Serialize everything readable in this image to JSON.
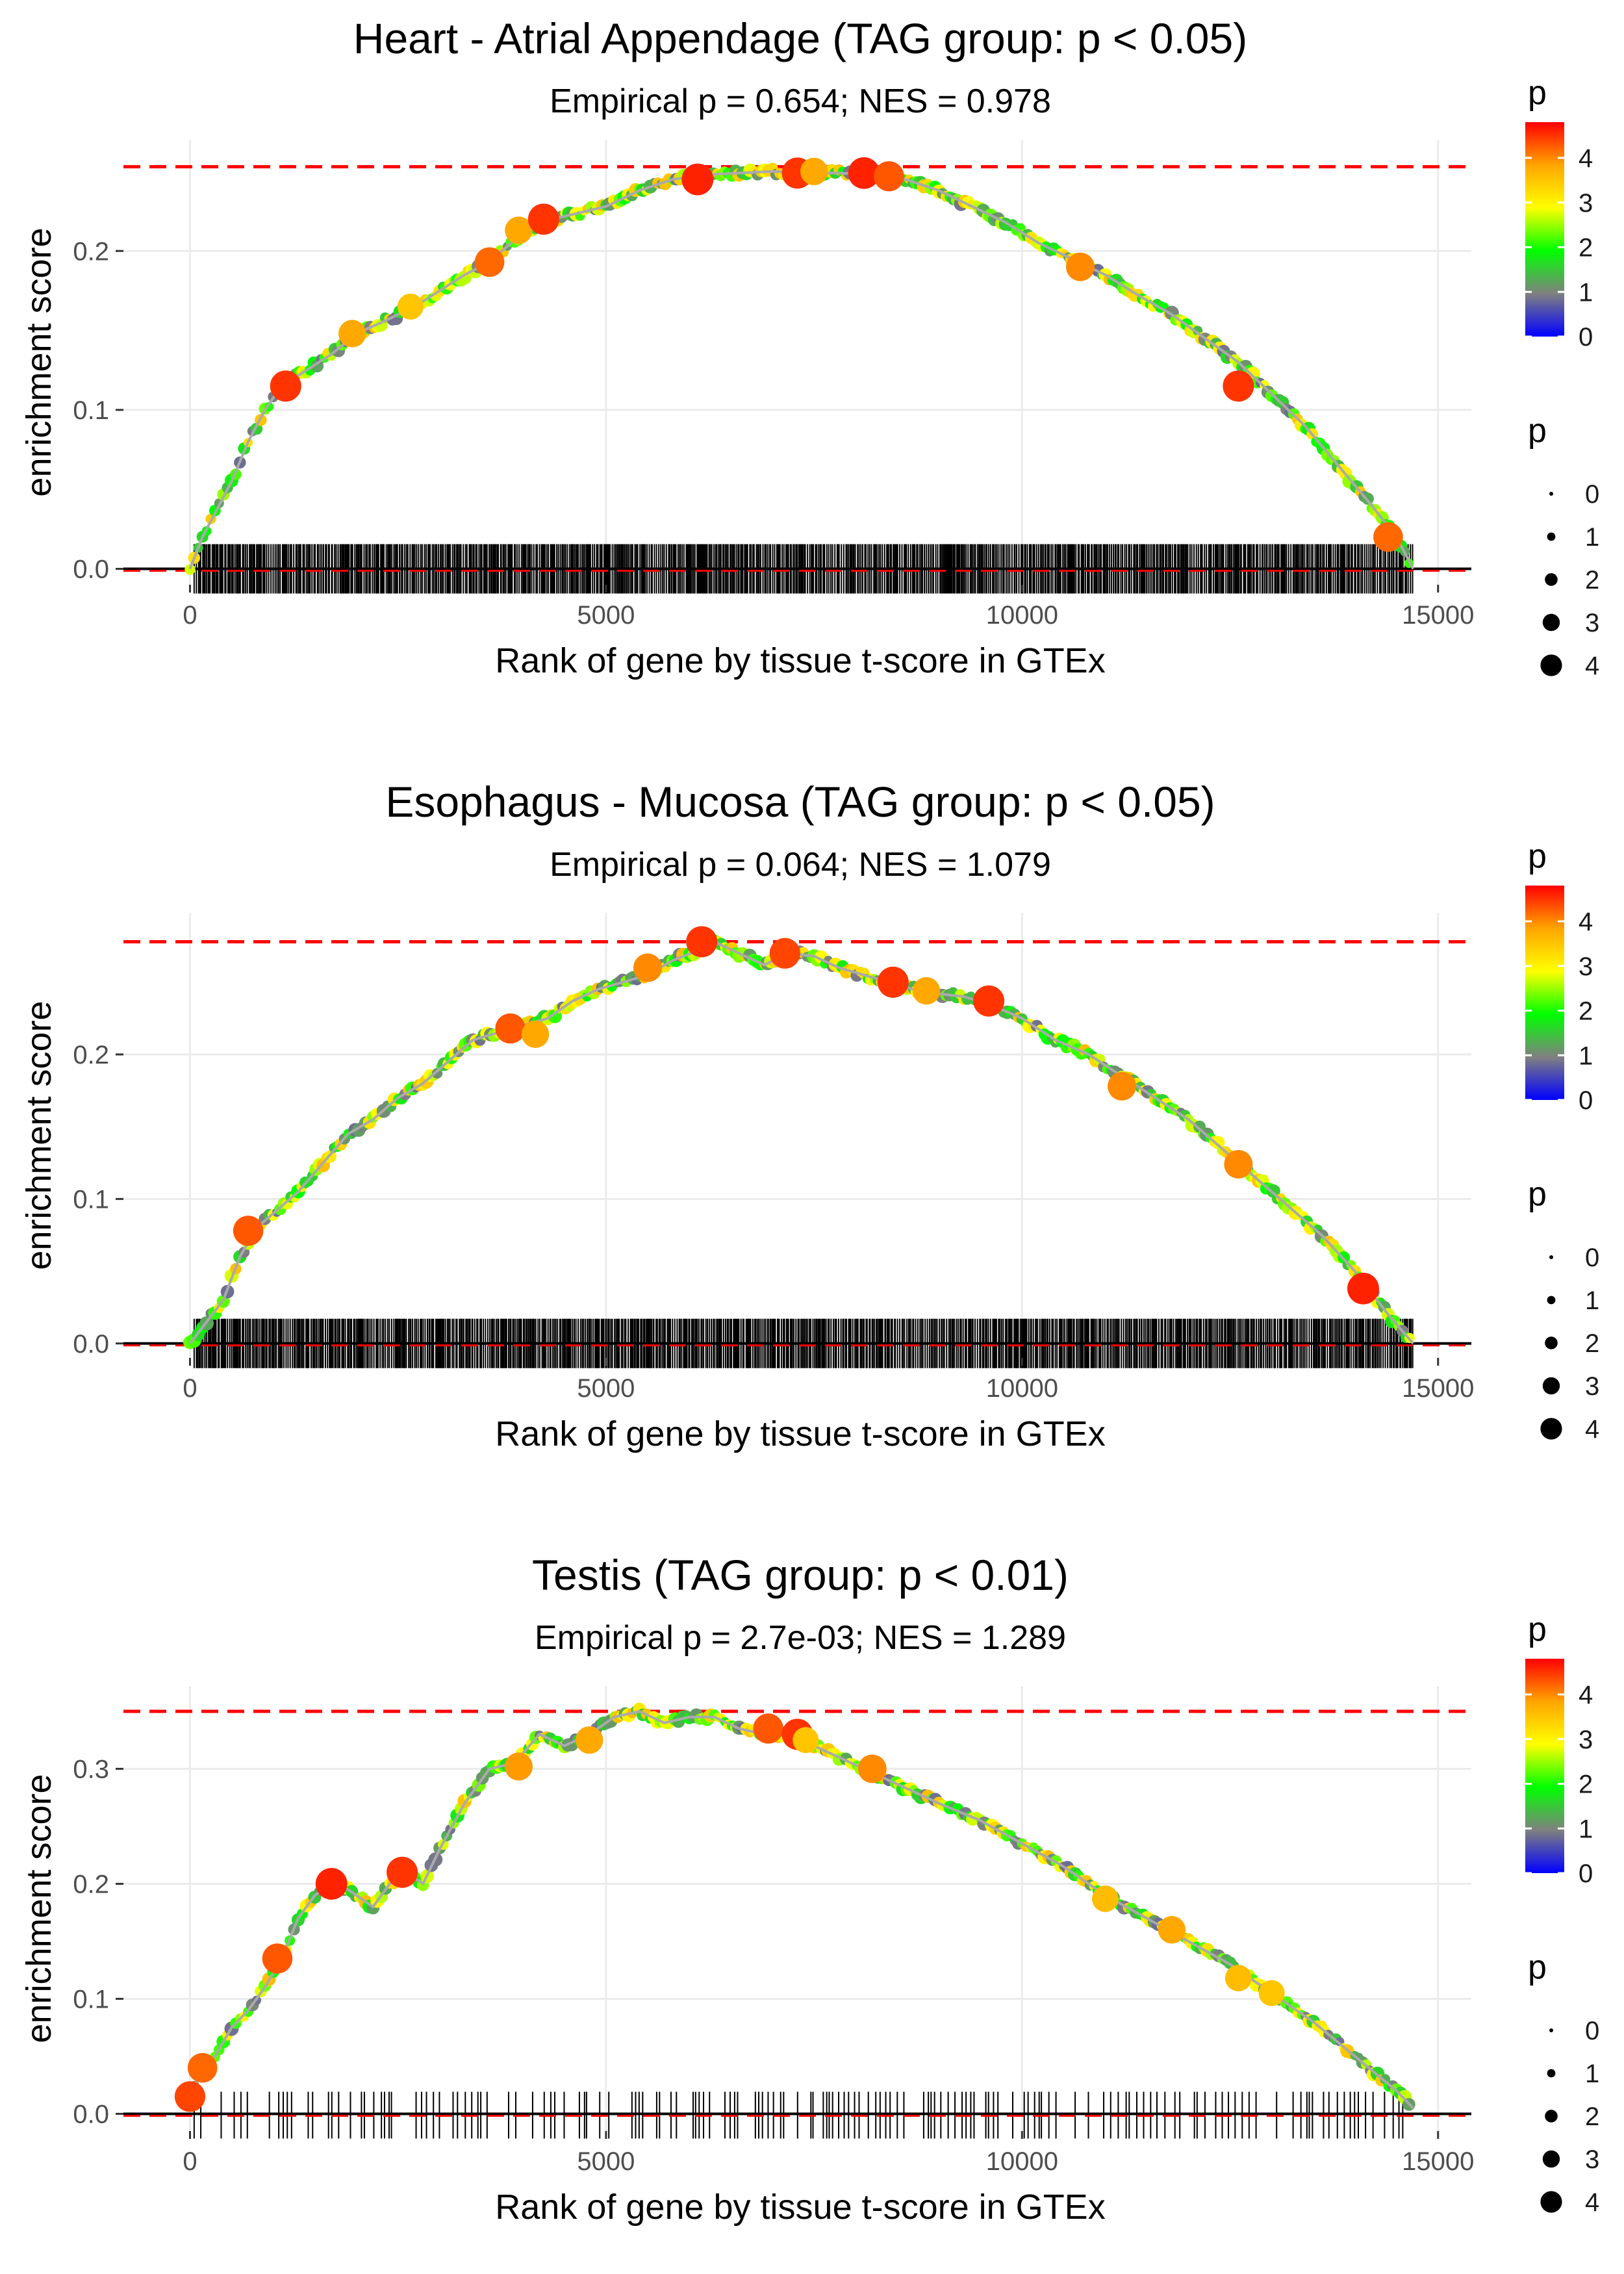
{
  "figure": {
    "colors": {
      "gradient": [
        "#0000ff",
        "#808080",
        "#00ff00",
        "#ffff00",
        "#ffa500",
        "#ff0000"
      ],
      "max_line": "#ff0000",
      "curve": "#aaaaaa",
      "rug": "#000000",
      "grid": "#ebebeb"
    }
  },
  "chart_data": [
    {
      "type": "line",
      "title": "Heart - Atrial Appendage (TAG group: p < 0.05)",
      "subtitle": "Empirical p = 0.654; NES = 0.978",
      "xlabel": "Rank of gene by tissue t-score in GTEx",
      "ylabel": "enrichment score",
      "xlim": [
        -800,
        15400
      ],
      "ylim": [
        -0.01,
        0.27
      ],
      "x_ticks": [
        0,
        5000,
        10000,
        15000
      ],
      "x_tick_labels": [
        "0",
        "5000",
        "10000",
        "15000"
      ],
      "y_ticks": [
        0.0,
        0.1,
        0.2
      ],
      "y_tick_labels": [
        "0.0",
        "0.1",
        "0.2"
      ],
      "max_es": 0.253,
      "n_genes": 14700,
      "rug_density": "dense",
      "es_curve": {
        "x": [
          0,
          150,
          300,
          500,
          700,
          900,
          1100,
          1400,
          1700,
          2000,
          2300,
          2700,
          3000,
          3300,
          3600,
          3900,
          4200,
          4600,
          5000,
          5400,
          5800,
          6200,
          6600,
          7000,
          7400,
          7800,
          8200,
          8600,
          9000,
          9400,
          9800,
          10200,
          10600,
          11000,
          11400,
          11800,
          12200,
          12600,
          13000,
          13400,
          13800,
          14200,
          14500,
          14700
        ],
        "y": [
          0.0,
          0.02,
          0.035,
          0.055,
          0.08,
          0.1,
          0.115,
          0.125,
          0.135,
          0.148,
          0.155,
          0.165,
          0.175,
          0.185,
          0.193,
          0.207,
          0.218,
          0.223,
          0.228,
          0.238,
          0.245,
          0.248,
          0.249,
          0.25,
          0.249,
          0.249,
          0.248,
          0.245,
          0.238,
          0.228,
          0.218,
          0.205,
          0.195,
          0.185,
          0.172,
          0.16,
          0.145,
          0.13,
          0.11,
          0.09,
          0.065,
          0.04,
          0.02,
          0.0
        ]
      },
      "highlight_points": [
        {
          "x": 1150,
          "y": 0.115,
          "p": 4.5
        },
        {
          "x": 1950,
          "y": 0.148,
          "p": 3.8
        },
        {
          "x": 2650,
          "y": 0.165,
          "p": 3.5
        },
        {
          "x": 3600,
          "y": 0.193,
          "p": 4.2
        },
        {
          "x": 3950,
          "y": 0.213,
          "p": 3.8
        },
        {
          "x": 4250,
          "y": 0.22,
          "p": 4.5
        },
        {
          "x": 6100,
          "y": 0.245,
          "p": 4.6
        },
        {
          "x": 7300,
          "y": 0.249,
          "p": 4.5
        },
        {
          "x": 7500,
          "y": 0.25,
          "p": 3.8
        },
        {
          "x": 8100,
          "y": 0.249,
          "p": 4.6
        },
        {
          "x": 8400,
          "y": 0.247,
          "p": 4.3
        },
        {
          "x": 10700,
          "y": 0.19,
          "p": 4.0
        },
        {
          "x": 12600,
          "y": 0.115,
          "p": 4.5
        },
        {
          "x": 14400,
          "y": 0.02,
          "p": 4.2
        }
      ],
      "legend": {
        "color_title": "p",
        "color_ticks": [
          "0",
          "1",
          "2",
          "3",
          "4"
        ],
        "size_title": "p",
        "size_labels": [
          "0",
          "1",
          "2",
          "3",
          "4"
        ]
      }
    },
    {
      "type": "line",
      "title": "Esophagus - Mucosa (TAG group: p < 0.05)",
      "subtitle": "Empirical p = 0.064; NES = 1.079",
      "xlabel": "Rank of gene by tissue t-score in GTEx",
      "ylabel": "enrichment score",
      "xlim": [
        -800,
        15400
      ],
      "ylim": [
        -0.01,
        0.298
      ],
      "x_ticks": [
        0,
        5000,
        10000,
        15000
      ],
      "x_tick_labels": [
        "0",
        "5000",
        "10000",
        "15000"
      ],
      "y_ticks": [
        0.0,
        0.1,
        0.2
      ],
      "y_tick_labels": [
        "0.0",
        "0.1",
        "0.2"
      ],
      "max_es": 0.278,
      "n_genes": 14700,
      "rug_density": "dense",
      "es_curve": {
        "x": [
          0,
          200,
          400,
          600,
          800,
          1000,
          1300,
          1600,
          1900,
          2200,
          2500,
          2800,
          3100,
          3400,
          3700,
          4000,
          4300,
          4600,
          4900,
          5200,
          5500,
          5800,
          6100,
          6300,
          6600,
          6900,
          7200,
          7500,
          7800,
          8100,
          8400,
          8700,
          9000,
          9300,
          9600,
          10000,
          10400,
          10800,
          11200,
          11600,
          12000,
          12400,
          12800,
          13200,
          13600,
          14000,
          14400,
          14700
        ],
        "y": [
          0.0,
          0.015,
          0.03,
          0.06,
          0.08,
          0.09,
          0.105,
          0.125,
          0.145,
          0.155,
          0.17,
          0.18,
          0.195,
          0.21,
          0.215,
          0.22,
          0.225,
          0.237,
          0.245,
          0.25,
          0.255,
          0.265,
          0.272,
          0.278,
          0.27,
          0.262,
          0.27,
          0.268,
          0.26,
          0.255,
          0.25,
          0.245,
          0.242,
          0.24,
          0.235,
          0.225,
          0.21,
          0.2,
          0.185,
          0.17,
          0.155,
          0.135,
          0.115,
          0.095,
          0.075,
          0.05,
          0.02,
          0.0
        ]
      },
      "highlight_points": [
        {
          "x": 700,
          "y": 0.078,
          "p": 4.3
        },
        {
          "x": 3850,
          "y": 0.218,
          "p": 4.3
        },
        {
          "x": 4150,
          "y": 0.214,
          "p": 3.8
        },
        {
          "x": 5500,
          "y": 0.26,
          "p": 4.0
        },
        {
          "x": 6150,
          "y": 0.278,
          "p": 4.5
        },
        {
          "x": 7150,
          "y": 0.27,
          "p": 4.4
        },
        {
          "x": 8450,
          "y": 0.25,
          "p": 4.5
        },
        {
          "x": 8850,
          "y": 0.244,
          "p": 3.8
        },
        {
          "x": 9600,
          "y": 0.237,
          "p": 4.5
        },
        {
          "x": 11200,
          "y": 0.178,
          "p": 4.0
        },
        {
          "x": 12600,
          "y": 0.124,
          "p": 4.0
        },
        {
          "x": 14100,
          "y": 0.038,
          "p": 4.6
        }
      ],
      "legend": {
        "color_title": "p",
        "color_ticks": [
          "0",
          "1",
          "2",
          "3",
          "4"
        ],
        "size_title": "p",
        "size_labels": [
          "0",
          "1",
          "2",
          "3",
          "4"
        ]
      }
    },
    {
      "type": "line",
      "title": "Testis (TAG group: p < 0.01)",
      "subtitle": "Empirical p = 2.7e-03; NES = 1.289",
      "xlabel": "Rank of gene by tissue t-score in GTEx",
      "ylabel": "enrichment score",
      "xlim": [
        -800,
        15400
      ],
      "ylim": [
        -0.015,
        0.372
      ],
      "x_ticks": [
        0,
        5000,
        10000,
        15000
      ],
      "x_tick_labels": [
        "0",
        "5000",
        "10000",
        "15000"
      ],
      "y_ticks": [
        0.0,
        0.1,
        0.2,
        0.3
      ],
      "y_tick_labels": [
        "0.0",
        "0.1",
        "0.2",
        "0.3"
      ],
      "max_es": 0.35,
      "n_genes": 14700,
      "rug_density": "sparse",
      "es_curve": {
        "x": [
          0,
          150,
          300,
          500,
          700,
          900,
          1100,
          1300,
          1500,
          1700,
          1900,
          2200,
          2400,
          2600,
          2800,
          3000,
          3300,
          3600,
          3900,
          4200,
          4500,
          4800,
          5100,
          5400,
          5700,
          6000,
          6300,
          6600,
          6900,
          7200,
          7500,
          7800,
          8100,
          8400,
          8700,
          9000,
          9500,
          10000,
          10500,
          11000,
          11500,
          12000,
          12500,
          13000,
          13500,
          14000,
          14500,
          14700
        ],
        "y": [
          0.015,
          0.04,
          0.05,
          0.075,
          0.09,
          0.11,
          0.135,
          0.17,
          0.19,
          0.2,
          0.195,
          0.18,
          0.2,
          0.21,
          0.2,
          0.23,
          0.27,
          0.3,
          0.305,
          0.33,
          0.32,
          0.33,
          0.345,
          0.35,
          0.34,
          0.345,
          0.345,
          0.335,
          0.33,
          0.33,
          0.32,
          0.31,
          0.3,
          0.29,
          0.28,
          0.27,
          0.255,
          0.235,
          0.215,
          0.19,
          0.17,
          0.15,
          0.13,
          0.105,
          0.08,
          0.05,
          0.02,
          0.005
        ]
      },
      "highlight_points": [
        {
          "x": 0,
          "y": 0.015,
          "p": 4.4
        },
        {
          "x": 150,
          "y": 0.04,
          "p": 4.2
        },
        {
          "x": 1050,
          "y": 0.135,
          "p": 4.3
        },
        {
          "x": 1700,
          "y": 0.2,
          "p": 4.6
        },
        {
          "x": 2550,
          "y": 0.21,
          "p": 4.5
        },
        {
          "x": 3950,
          "y": 0.302,
          "p": 3.9
        },
        {
          "x": 4800,
          "y": 0.325,
          "p": 3.8
        },
        {
          "x": 6950,
          "y": 0.335,
          "p": 4.3
        },
        {
          "x": 7300,
          "y": 0.33,
          "p": 4.5
        },
        {
          "x": 7400,
          "y": 0.325,
          "p": 3.5
        },
        {
          "x": 8200,
          "y": 0.3,
          "p": 4.0
        },
        {
          "x": 11000,
          "y": 0.187,
          "p": 3.6
        },
        {
          "x": 11800,
          "y": 0.16,
          "p": 3.8
        },
        {
          "x": 12600,
          "y": 0.118,
          "p": 3.6
        },
        {
          "x": 13000,
          "y": 0.105,
          "p": 3.5
        }
      ],
      "legend": {
        "color_title": "p",
        "color_ticks": [
          "0",
          "1",
          "2",
          "3",
          "4"
        ],
        "size_title": "p",
        "size_labels": [
          "0",
          "1",
          "2",
          "3",
          "4"
        ]
      }
    }
  ]
}
